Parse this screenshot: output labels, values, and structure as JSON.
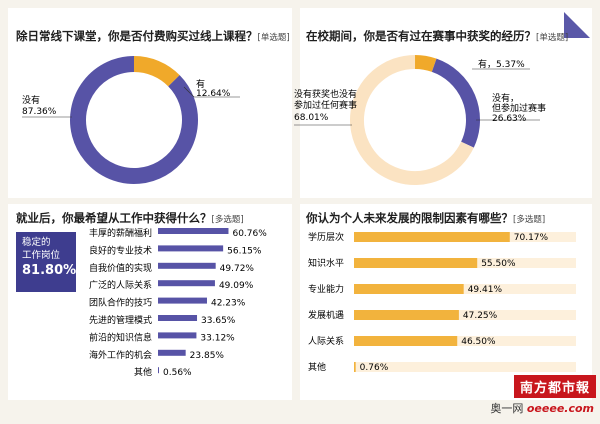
{
  "chart_data": [
    {
      "type": "pie",
      "title": "除日常线下课堂，你是否付费购买过线上课程？",
      "tag": "[单选题]",
      "slices": [
        {
          "label": "有",
          "value": "12.64%",
          "v": 12.64,
          "color": "#f0a92a"
        },
        {
          "label": "没有",
          "value": "87.36%",
          "v": 87.36,
          "color": "#5753a6"
        }
      ]
    },
    {
      "type": "pie",
      "title": "在校期间，你是否有过在赛事中获奖的经历？",
      "tag": "[单选题]",
      "slices": [
        {
          "label": "有",
          "value": "5.37%",
          "v": 5.37,
          "color": "#f0a92a"
        },
        {
          "label": "没有，但参加过赛事",
          "value": "26.63%",
          "v": 26.63,
          "color": "#5753a6"
        },
        {
          "label": "没有获奖也没有参加过任何赛事",
          "value": "68.01%",
          "v": 68.01,
          "color": "#fbe3c2"
        }
      ]
    },
    {
      "type": "bar",
      "title": "就业后，你最希望从工作中获得什么？",
      "tag": "[多选题]",
      "highlight": {
        "label1": "稳定的",
        "label2": "工作岗位",
        "value": "81.80%"
      },
      "color": "#5753a6",
      "categories": [
        "丰厚的薪酬福利",
        "良好的专业技术",
        "自我价值的实现",
        "广泛的人际关系",
        "团队合作的技巧",
        "先进的管理模式",
        "前沿的知识信息",
        "海外工作的机会",
        "其他"
      ],
      "labels": [
        "60.76%",
        "56.15%",
        "49.72%",
        "49.09%",
        "42.23%",
        "33.65%",
        "33.12%",
        "23.85%",
        "0.56%"
      ],
      "values": [
        60.76,
        56.15,
        49.72,
        49.09,
        42.23,
        33.65,
        33.12,
        23.85,
        0.56
      ]
    },
    {
      "type": "bar",
      "title": "你认为个人未来发展的限制因素有哪些？",
      "tag": "[多选题]",
      "color": "#f2b33d",
      "categories": [
        "学历层次",
        "知识水平",
        "专业能力",
        "发展机遇",
        "人际关系",
        "其他"
      ],
      "labels": [
        "70.17%",
        "55.50%",
        "49.41%",
        "47.25%",
        "46.50%",
        "0.76%"
      ],
      "values": [
        70.17,
        55.5,
        49.41,
        47.25,
        46.5,
        0.76
      ]
    }
  ],
  "branding": {
    "logo": "南方都市報",
    "sub": "奥一网",
    "sub_en": "oeeee.com"
  }
}
